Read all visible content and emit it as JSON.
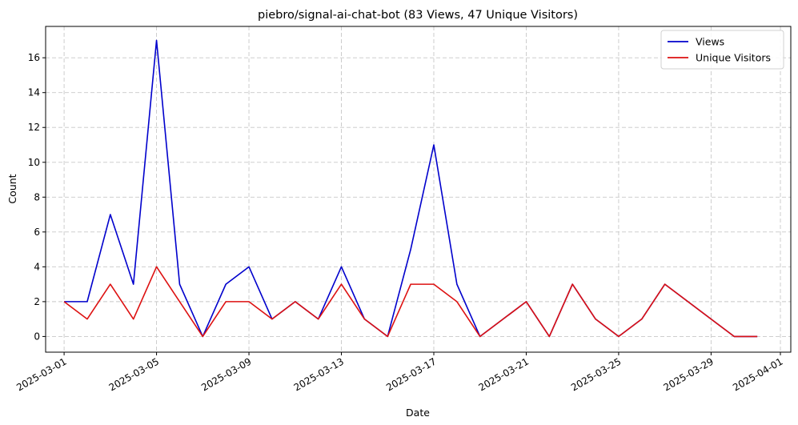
{
  "chart_data": {
    "type": "line",
    "title": "piebro/signal-ai-chat-bot (83 Views, 47 Unique Visitors)",
    "xlabel": "Date",
    "ylabel": "Count",
    "x_axis": "date",
    "xlim": [
      "2025-02-28",
      "2025-04-01"
    ],
    "ylim": [
      -0.9,
      17.8
    ],
    "x_ticks": [
      "2025-03-01",
      "2025-03-05",
      "2025-03-09",
      "2025-03-13",
      "2025-03-17",
      "2025-03-21",
      "2025-03-25",
      "2025-03-29",
      "2025-04-01"
    ],
    "y_ticks": [
      0,
      2,
      4,
      6,
      8,
      10,
      12,
      14,
      16
    ],
    "grid": true,
    "legend_position": "upper-right",
    "series": [
      {
        "name": "Views",
        "color": "#0000cc",
        "points": [
          [
            "2025-03-01",
            2
          ],
          [
            "2025-03-02",
            2
          ],
          [
            "2025-03-03",
            7
          ],
          [
            "2025-03-04",
            3
          ],
          [
            "2025-03-05",
            17
          ],
          [
            "2025-03-06",
            3
          ],
          [
            "2025-03-07",
            0
          ],
          [
            "2025-03-08",
            3
          ],
          [
            "2025-03-09",
            4
          ],
          [
            "2025-03-10",
            1
          ],
          [
            "2025-03-11",
            2
          ],
          [
            "2025-03-12",
            1
          ],
          [
            "2025-03-13",
            4
          ],
          [
            "2025-03-14",
            1
          ],
          [
            "2025-03-15",
            0
          ],
          [
            "2025-03-16",
            5
          ],
          [
            "2025-03-17",
            11
          ],
          [
            "2025-03-18",
            3
          ],
          [
            "2025-03-19",
            0
          ],
          [
            "2025-03-21",
            2
          ],
          [
            "2025-03-22",
            0
          ],
          [
            "2025-03-23",
            3
          ],
          [
            "2025-03-24",
            1
          ],
          [
            "2025-03-25",
            0
          ],
          [
            "2025-03-26",
            1
          ],
          [
            "2025-03-27",
            3
          ],
          [
            "2025-03-30",
            0
          ],
          [
            "2025-03-31",
            0
          ]
        ]
      },
      {
        "name": "Unique Visitors",
        "color": "#dd1111",
        "points": [
          [
            "2025-03-01",
            2
          ],
          [
            "2025-03-02",
            1
          ],
          [
            "2025-03-03",
            3
          ],
          [
            "2025-03-04",
            1
          ],
          [
            "2025-03-05",
            4
          ],
          [
            "2025-03-06",
            2
          ],
          [
            "2025-03-07",
            0
          ],
          [
            "2025-03-08",
            2
          ],
          [
            "2025-03-09",
            2
          ],
          [
            "2025-03-10",
            1
          ],
          [
            "2025-03-11",
            2
          ],
          [
            "2025-03-12",
            1
          ],
          [
            "2025-03-13",
            3
          ],
          [
            "2025-03-14",
            1
          ],
          [
            "2025-03-15",
            0
          ],
          [
            "2025-03-16",
            3
          ],
          [
            "2025-03-17",
            3
          ],
          [
            "2025-03-18",
            2
          ],
          [
            "2025-03-19",
            0
          ],
          [
            "2025-03-21",
            2
          ],
          [
            "2025-03-22",
            0
          ],
          [
            "2025-03-23",
            3
          ],
          [
            "2025-03-24",
            1
          ],
          [
            "2025-03-25",
            0
          ],
          [
            "2025-03-26",
            1
          ],
          [
            "2025-03-27",
            3
          ],
          [
            "2025-03-30",
            0
          ],
          [
            "2025-03-31",
            0
          ]
        ]
      }
    ]
  }
}
